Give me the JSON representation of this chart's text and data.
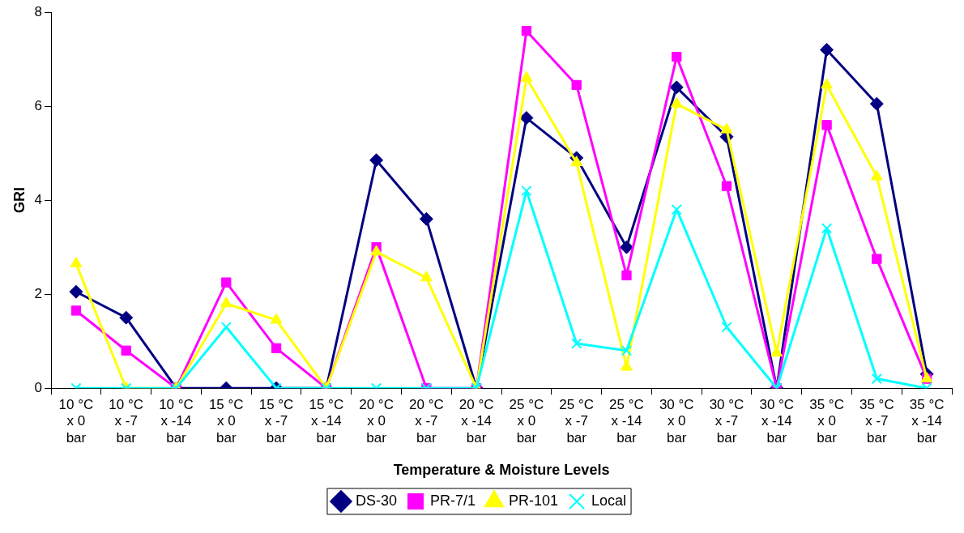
{
  "chart_data": {
    "type": "line",
    "xlabel": "Temperature & Moisture Levels",
    "ylabel": "GRI",
    "categories": [
      "10 °C x 0 bar",
      "10 °C x -7 bar",
      "10 °C x -14 bar",
      "15 °C x 0 bar",
      "15 °C x -7 bar",
      "15 °C x -14 bar",
      "20 °C x 0 bar",
      "20 °C x -7 bar",
      "20 °C x -14 bar",
      "25 °C x 0 bar",
      "25 °C x -7 bar",
      "25 °C x -14 bar",
      "30 °C x 0 bar",
      "30 °C x -7 bar",
      "30 °C x -14 bar",
      "35 °C x 0 bar",
      "35 °C x -7 bar",
      "35 °C x -14 bar"
    ],
    "series": [
      {
        "name": "DS-30",
        "color": "#000080",
        "marker": "diamond",
        "values": [
          2.05,
          1.5,
          0,
          0,
          0,
          0,
          4.85,
          3.6,
          0,
          5.75,
          4.9,
          3.0,
          6.4,
          5.35,
          0,
          7.2,
          6.05,
          0.3
        ]
      },
      {
        "name": "PR-7/1",
        "color": "#ff00ff",
        "marker": "square",
        "values": [
          1.65,
          0.8,
          0,
          2.25,
          0.85,
          0,
          3.0,
          0,
          0,
          7.6,
          6.45,
          2.4,
          7.05,
          4.3,
          0,
          5.6,
          2.75,
          0.2
        ]
      },
      {
        "name": "PR-101",
        "color": "#ffff00",
        "marker": "triangle",
        "values": [
          2.65,
          0,
          0,
          1.8,
          1.45,
          0,
          2.9,
          2.35,
          0,
          6.6,
          4.8,
          0.45,
          6.05,
          5.5,
          0.75,
          6.45,
          4.5,
          0.2
        ]
      },
      {
        "name": "Local",
        "color": "#00ffff",
        "marker": "cross",
        "values": [
          0,
          0,
          0,
          1.3,
          0,
          0,
          0,
          0,
          0,
          4.2,
          0.95,
          0.8,
          3.8,
          1.3,
          0,
          3.4,
          0.2,
          0
        ]
      }
    ],
    "ylim": [
      0,
      8
    ],
    "yticks": [
      0,
      2,
      4,
      6,
      8
    ],
    "grid": false,
    "legend": "bottom",
    "line_style": "solid"
  }
}
